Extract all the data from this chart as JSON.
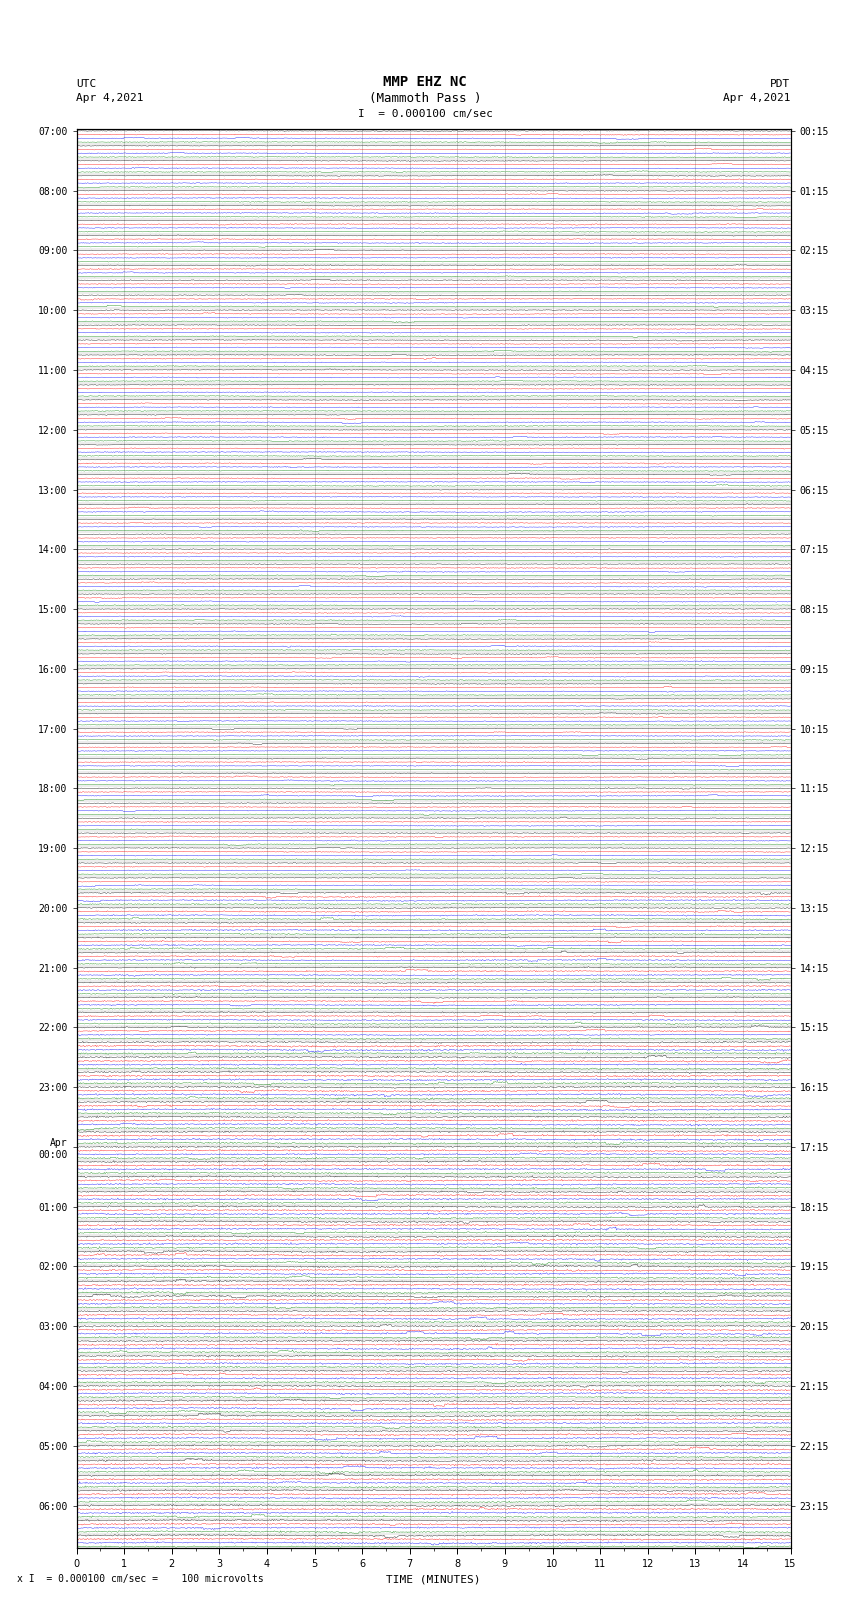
{
  "title_line1": "MMP EHZ NC",
  "title_line2": "(Mammoth Pass )",
  "scale_text": "I  = 0.000100 cm/sec",
  "left_label": "UTC",
  "left_date": "Apr 4,2021",
  "right_label": "PDT",
  "right_date": "Apr 4,2021",
  "xlabel": "TIME (MINUTES)",
  "bottom_note": "x I  = 0.000100 cm/sec =    100 microvolts",
  "utc_times": [
    "07:00",
    "",
    "",
    "",
    "08:00",
    "",
    "",
    "",
    "09:00",
    "",
    "",
    "",
    "10:00",
    "",
    "",
    "",
    "11:00",
    "",
    "",
    "",
    "12:00",
    "",
    "",
    "",
    "13:00",
    "",
    "",
    "",
    "14:00",
    "",
    "",
    "",
    "15:00",
    "",
    "",
    "",
    "16:00",
    "",
    "",
    "",
    "17:00",
    "",
    "",
    "",
    "18:00",
    "",
    "",
    "",
    "19:00",
    "",
    "",
    "",
    "20:00",
    "",
    "",
    "",
    "21:00",
    "",
    "",
    "",
    "22:00",
    "",
    "",
    "",
    "23:00",
    "",
    "",
    "",
    "Apr\n00:00",
    "",
    "",
    "",
    "01:00",
    "",
    "",
    "",
    "02:00",
    "",
    "",
    "",
    "03:00",
    "",
    "",
    "",
    "04:00",
    "",
    "",
    "",
    "05:00",
    "",
    "",
    "",
    "06:00",
    "",
    ""
  ],
  "pdt_times": [
    "00:15",
    "",
    "",
    "",
    "01:15",
    "",
    "",
    "",
    "02:15",
    "",
    "",
    "",
    "03:15",
    "",
    "",
    "",
    "04:15",
    "",
    "",
    "",
    "05:15",
    "",
    "",
    "",
    "06:15",
    "",
    "",
    "",
    "07:15",
    "",
    "",
    "",
    "08:15",
    "",
    "",
    "",
    "09:15",
    "",
    "",
    "",
    "10:15",
    "",
    "",
    "",
    "11:15",
    "",
    "",
    "",
    "12:15",
    "",
    "",
    "",
    "13:15",
    "",
    "",
    "",
    "14:15",
    "",
    "",
    "",
    "15:15",
    "",
    "",
    "",
    "16:15",
    "",
    "",
    "",
    "17:15",
    "",
    "",
    "",
    "18:15",
    "",
    "",
    "",
    "19:15",
    "",
    "",
    "",
    "20:15",
    "",
    "",
    "",
    "21:15",
    "",
    "",
    "",
    "22:15",
    "",
    "",
    "",
    "23:15",
    "",
    ""
  ],
  "trace_colors": [
    "black",
    "red",
    "blue",
    "green"
  ],
  "n_rows": 95,
  "n_points": 900,
  "x_min": 0,
  "x_max": 15,
  "background": "white",
  "grid_color": "#aaaaaa",
  "fig_width": 8.5,
  "fig_height": 16.13
}
